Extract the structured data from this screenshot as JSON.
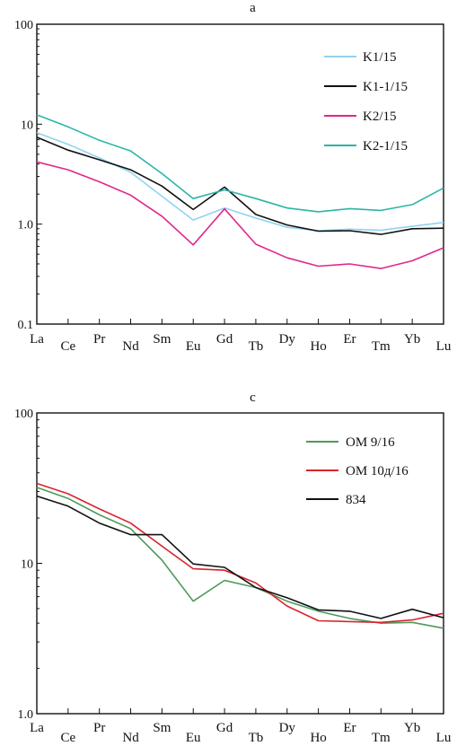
{
  "chart_data": [
    {
      "type": "line",
      "title": "a",
      "y_scale": "log",
      "ylim": [
        0.1,
        100
      ],
      "y_ticks": [
        "100",
        "10",
        "1.0",
        "0.1"
      ],
      "categories": [
        "La",
        "Ce",
        "Pr",
        "Nd",
        "Sm",
        "Eu",
        "Gd",
        "Tb",
        "Dy",
        "Ho",
        "Er",
        "Tm",
        "Yb",
        "Lu"
      ],
      "grid": false,
      "legend_position": "top-right",
      "series": [
        {
          "name": "K1/15",
          "color": "#8fd3f2",
          "values": [
            8.2,
            6.3,
            4.6,
            3.3,
            1.9,
            1.1,
            1.45,
            1.15,
            0.93,
            0.86,
            0.89,
            0.87,
            0.95,
            1.04
          ]
        },
        {
          "name": "K1-1/15",
          "color": "#111111",
          "values": [
            7.4,
            5.5,
            4.4,
            3.5,
            2.4,
            1.4,
            2.35,
            1.25,
            0.98,
            0.85,
            0.86,
            0.79,
            0.9,
            0.91
          ]
        },
        {
          "name": "K2/15",
          "color": "#e0288a",
          "values": [
            4.2,
            3.5,
            2.65,
            1.95,
            1.2,
            0.62,
            1.42,
            0.63,
            0.46,
            0.38,
            0.4,
            0.36,
            0.43,
            0.58
          ]
        },
        {
          "name": "K2-1/15",
          "color": "#2bb5a6",
          "values": [
            12.4,
            9.4,
            6.9,
            5.4,
            3.2,
            1.8,
            2.2,
            1.8,
            1.45,
            1.33,
            1.43,
            1.37,
            1.57,
            2.3
          ]
        }
      ]
    },
    {
      "type": "line",
      "title": "c",
      "y_scale": "log",
      "ylim": [
        1,
        100
      ],
      "y_ticks": [
        "100",
        "10",
        "1.0"
      ],
      "categories": [
        "La",
        "Ce",
        "Pr",
        "Nd",
        "Sm",
        "Eu",
        "Gd",
        "Tb",
        "Dy",
        "Ho",
        "Er",
        "Tm",
        "Yb",
        "Lu"
      ],
      "grid": false,
      "legend_position": "top-right",
      "series": [
        {
          "name": "OM 9/16",
          "color": "#4e9a5c",
          "values": [
            32,
            27,
            21,
            17,
            10.5,
            5.6,
            7.7,
            6.9,
            5.6,
            4.8,
            4.3,
            4.0,
            4.05,
            3.7
          ]
        },
        {
          "name": "OM 10д/16",
          "color": "#d9232e",
          "values": [
            34,
            29,
            23,
            18.5,
            13,
            9.2,
            9.0,
            7.4,
            5.2,
            4.15,
            4.1,
            4.05,
            4.2,
            4.65
          ]
        },
        {
          "name": "834",
          "color": "#111111",
          "values": [
            28,
            24,
            18.5,
            15.5,
            15.5,
            9.9,
            9.4,
            6.9,
            5.9,
            4.9,
            4.8,
            4.3,
            4.95,
            4.35
          ]
        }
      ]
    }
  ]
}
